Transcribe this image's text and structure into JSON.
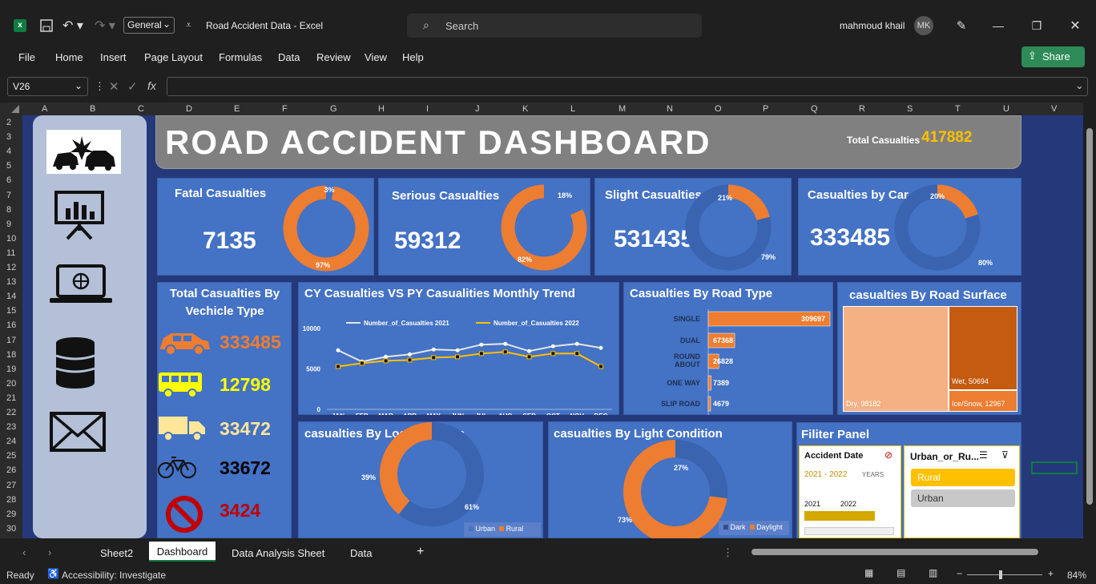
{
  "window": {
    "app_icon": "excel-icon",
    "number_format": "General",
    "title": "Road Accident Data  -  Excel",
    "search_placeholder": "Search",
    "user_name": "mahmoud khail",
    "user_initials": "MK"
  },
  "menu": [
    "File",
    "Home",
    "Insert",
    "Page Layout",
    "Formulas",
    "Data",
    "Review",
    "View",
    "Help"
  ],
  "share_label": "Share",
  "formula_bar": {
    "name_box": "V26",
    "formula": ""
  },
  "columns": [
    "A",
    "B",
    "C",
    "D",
    "E",
    "F",
    "G",
    "H",
    "I",
    "J",
    "K",
    "L",
    "M",
    "N",
    "O",
    "P",
    "Q",
    "R",
    "S",
    "T",
    "U",
    "V"
  ],
  "rows": [
    "2",
    "3",
    "4",
    "5",
    "6",
    "7",
    "8",
    "9",
    "10",
    "11",
    "12",
    "13",
    "14",
    "15",
    "16",
    "17",
    "18",
    "19",
    "20",
    "21",
    "22",
    "23",
    "24",
    "25",
    "26",
    "27",
    "28",
    "29",
    "30"
  ],
  "dashboard": {
    "title": "ROAD ACCIDENT DASHBOARD",
    "total_label": "Total Casualties",
    "total_value": "417882",
    "kpis": [
      {
        "label": "Fatal Casualties",
        "value": "7135",
        "pct_small": "3%",
        "pct_large": "97%"
      },
      {
        "label": "Serious Casualties",
        "value": "59312",
        "pct_small": "18%",
        "pct_large": "82%"
      },
      {
        "label": "Slight Casualties",
        "value": "531435",
        "pct_small": "21%",
        "pct_large": "79%"
      },
      {
        "label": "Casualties by Car",
        "value": "333485",
        "pct_small": "20%",
        "pct_large": "80%"
      }
    ],
    "vehicle_title": "Total Casualties By Vechicle Type",
    "vehicles": [
      {
        "icon": "car-icon",
        "value": "333485",
        "color": "#ed7d31"
      },
      {
        "icon": "bus-icon",
        "value": "12798",
        "color": "#ffff00"
      },
      {
        "icon": "truck-icon",
        "value": "33472",
        "color": "#ffe699"
      },
      {
        "icon": "bicycle-icon",
        "value": "33672",
        "color": "#000000"
      },
      {
        "icon": "no-entry-icon",
        "value": "3424",
        "color": "#c00000"
      }
    ],
    "trend_title": "CY Casualties VS PY Casualities Monthly Trend",
    "road_type_title": "Casualties By Road Type",
    "road_surface_title": "casualties By Road Surface",
    "surface_labels": {
      "dry": "Dry, 98182",
      "wet": "Wet, 50694",
      "ice": "Ice/Snow, 12967"
    },
    "location_title": "casualties By Location/Area",
    "location_labels": {
      "rural_pct": "39%",
      "urban_pct": "61%",
      "legend_urban": "Urban",
      "legend_rural": "Rural"
    },
    "light_title": "casualties By Light Condition",
    "light_labels": {
      "dark_pct": "27%",
      "day_pct": "73%",
      "legend_dark": "Dark",
      "legend_day": "Daylight"
    },
    "filter_title": "Filiter Panel",
    "timeline": {
      "title": "Accident  Date",
      "range": "2021 - 2022",
      "unit": "YEARS",
      "y1": "2021",
      "y2": "2022"
    },
    "slicer": {
      "title": "Urban_or_Ru...",
      "items": [
        "Rural",
        "Urban"
      ]
    },
    "sidebar_icons": [
      "crash-logo-icon",
      "presentation-chart-icon",
      "laptop-globe-icon",
      "database-icon",
      "mail-icon"
    ]
  },
  "chart_data": [
    {
      "type": "line",
      "title": "CY Casualties VS PY Casualities Monthly Trend",
      "categories": [
        "JAN",
        "FEB",
        "MAR",
        "APR",
        "MAY",
        "JUN",
        "JUL",
        "AUG",
        "SEP",
        "OCT",
        "NOV",
        "DEC"
      ],
      "ylim": [
        0,
        10000
      ],
      "yticks": [
        "10000",
        "5000",
        "0"
      ],
      "series": [
        {
          "name": "Number_of_Casualties 2021",
          "values": [
            7300,
            5900,
            6500,
            6800,
            7400,
            7300,
            8000,
            8100,
            7200,
            7800,
            8100,
            7600
          ]
        },
        {
          "name": "Number_of_Casualties 2022",
          "values": [
            5300,
            5700,
            6000,
            6100,
            6400,
            6500,
            6900,
            7100,
            6500,
            6900,
            6900,
            5300
          ]
        }
      ]
    },
    {
      "type": "bar",
      "title": "Casualties By Road Type",
      "categories": [
        "SINGLE",
        "DUAL",
        "ROUND ABOUT",
        "ONE WAY",
        "SLIP ROAD"
      ],
      "values": [
        309697,
        67368,
        26828,
        7389,
        4679
      ]
    },
    {
      "type": "heatmap",
      "title": "casualties By Road Surface",
      "categories": [
        "Dry",
        "Wet",
        "Ice/Snow"
      ],
      "values": [
        98182,
        50694,
        12967
      ]
    },
    {
      "type": "pie",
      "title": "casualties By Location/Area",
      "categories": [
        "Urban",
        "Rural"
      ],
      "values": [
        61,
        39
      ]
    },
    {
      "type": "pie",
      "title": "casualties By Light Condition",
      "categories": [
        "Dark",
        "Daylight"
      ],
      "values": [
        27,
        73
      ]
    }
  ],
  "sheet_tabs": [
    "Sheet2",
    "Dashboard",
    "Data Analysis Sheet",
    "Data"
  ],
  "status": {
    "ready": "Ready",
    "accessibility": "Accessibility: Investigate",
    "zoom": "84%"
  }
}
